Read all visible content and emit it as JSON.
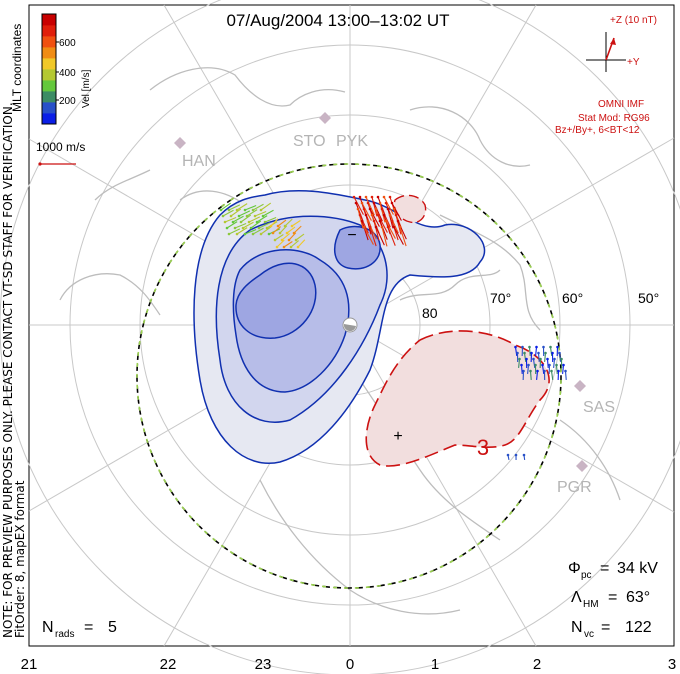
{
  "header": {
    "title": "07/Aug/2004 13:00–13:02 UT"
  },
  "side_notes": {
    "coordinates": "MLT coordinates",
    "preview": "NOTE: FOR PREVIEW PURPOSES ONLY. PLEASE CONTACT VT-SD STAFF FOR VERIFICATION.",
    "fit": "FitOrder: 8, mapEX format"
  },
  "velocity_scale": {
    "label": "Vel [m/s]",
    "ticks": [
      "600",
      "400",
      "200"
    ],
    "colors": [
      "#0a1ee6",
      "#2850c8",
      "#3c8c64",
      "#64c83c",
      "#b4c832",
      "#f0c828",
      "#f08c14",
      "#f05010",
      "#e01e0a",
      "#c80000"
    ]
  },
  "reference_vector": {
    "label": "1000 m/s"
  },
  "imf": {
    "label": "+Z (10 nT)",
    "y_label": "+Y",
    "omni": "OMNI IMF",
    "model": "Stat Mod: RG96",
    "condition": "Bz+/By+, 6<BT<12"
  },
  "radars": [
    "HAN",
    "STO",
    "PYK",
    "SAS",
    "PGR"
  ],
  "latitude_labels": [
    "80",
    "70°",
    "60°",
    "50°"
  ],
  "mlt_labels": [
    "21",
    "22",
    "23",
    "0",
    "1",
    "2",
    "3"
  ],
  "potential_markers": [
    "−",
    "+",
    "3"
  ],
  "stats": {
    "phi_pc": "34 kV",
    "lambda_hm": "63°",
    "n_vc": "122",
    "n_rads": "5"
  },
  "colors": {
    "negative_contour": "#1030b0",
    "positive_contour": "#cc1111",
    "hm_boundary_dash": "#9ad050",
    "coast": "#bdbdbd",
    "grid": "#c8c8c8"
  }
}
